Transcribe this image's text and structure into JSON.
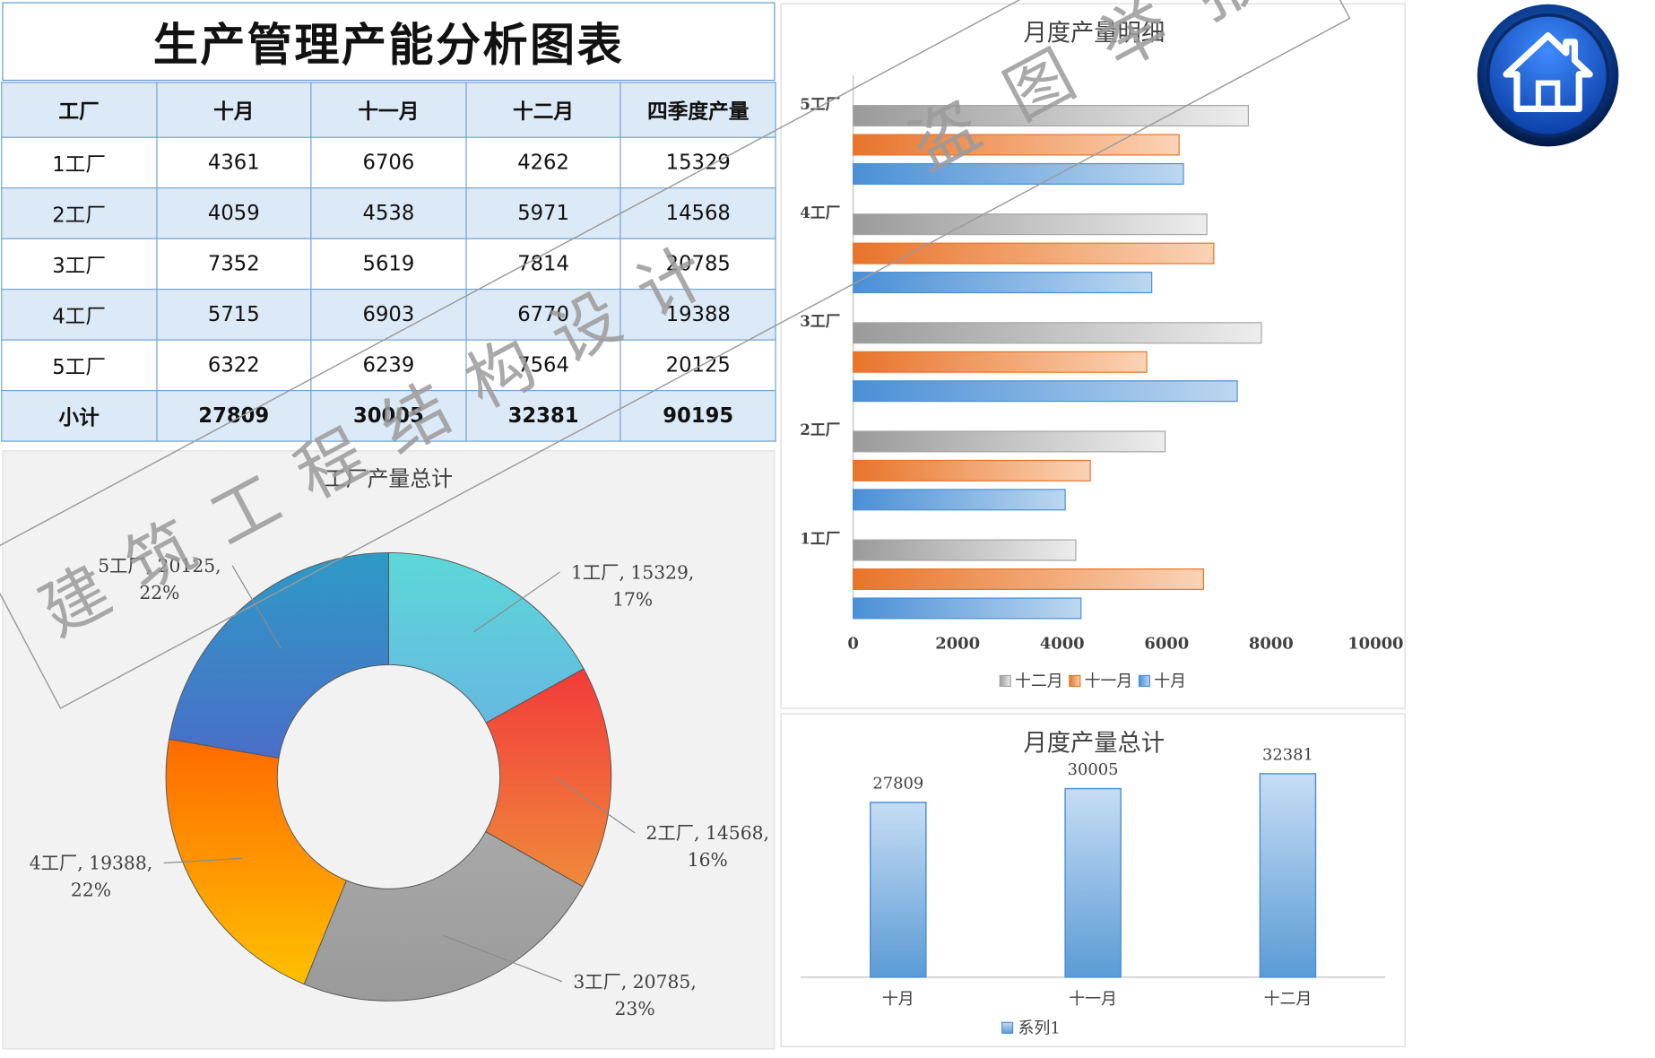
{
  "page": {
    "title": "生产管理产能分析图表",
    "watermark": {
      "line1": [
        "建",
        "筑",
        "工",
        "程",
        "结",
        "构",
        "设",
        "计"
      ],
      "line2": [
        "盗",
        "图",
        "举",
        "报"
      ]
    }
  },
  "table": {
    "headers": [
      "工厂",
      "十月",
      "十一月",
      "十二月",
      "四季度产量"
    ],
    "rows": [
      [
        "1工厂",
        "4361",
        "6706",
        "4262",
        "15329"
      ],
      [
        "2工厂",
        "4059",
        "4538",
        "5971",
        "14568"
      ],
      [
        "3工厂",
        "7352",
        "5619",
        "7814",
        "20785"
      ],
      [
        "4工厂",
        "5715",
        "6903",
        "6770",
        "19388"
      ],
      [
        "5工厂",
        "6322",
        "6239",
        "7564",
        "20125"
      ]
    ],
    "subtotal": [
      "小计",
      "27809",
      "30005",
      "32381",
      "90195"
    ]
  },
  "colors": {
    "header_bg": "#dce9f6",
    "border": "#6fa3d6",
    "blue": "#5b9bd5",
    "orange": "#ed7d31",
    "gray": "#a5a5a5"
  },
  "chart_data": [
    {
      "type": "pie",
      "donut": true,
      "title": "工厂产量总计",
      "categories": [
        "1工厂",
        "2工厂",
        "3工厂",
        "4工厂",
        "5工厂"
      ],
      "values": [
        15329,
        14568,
        20785,
        19388,
        20125
      ],
      "labels": [
        [
          "1工厂, 15329,",
          "17%"
        ],
        [
          "2工厂, 14568,",
          "16%"
        ],
        [
          "3工厂, 20785,",
          "23%"
        ],
        [
          "4工厂, 19388,",
          "22%"
        ],
        [
          "5工厂, 20125,",
          "22%"
        ]
      ],
      "colors": [
        [
          "#5cd8d8",
          "#66b8e0"
        ],
        [
          "#f23a3a",
          "#f08a3a"
        ],
        [
          "#a8a8a8",
          "#9a9a9a"
        ],
        [
          "#ff6a00",
          "#ffc000"
        ],
        [
          "#2e9ac6",
          "#4a6ec8"
        ]
      ]
    },
    {
      "type": "bar",
      "orientation": "horizontal",
      "title": "月度产量明细",
      "categories": [
        "1工厂",
        "2工厂",
        "3工厂",
        "4工厂",
        "5工厂"
      ],
      "series": [
        {
          "name": "十月",
          "values": [
            4361,
            4059,
            7352,
            5715,
            6322
          ],
          "color": "#5b9bd5"
        },
        {
          "name": "十一月",
          "values": [
            6706,
            4538,
            5619,
            6903,
            6239
          ],
          "color": "#ed7d31"
        },
        {
          "name": "十二月",
          "values": [
            4262,
            5971,
            7814,
            6770,
            7564
          ],
          "color": "#a5a5a5"
        }
      ],
      "xlim": [
        0,
        10000
      ],
      "x_ticks": [
        "0",
        "2000",
        "4000",
        "6000",
        "8000",
        "10000"
      ],
      "legend_order": [
        "十二月",
        "十一月",
        "十月"
      ],
      "legend_position": "bottom"
    },
    {
      "type": "bar",
      "title": "月度产量总计",
      "categories": [
        "十月",
        "十一月",
        "十二月"
      ],
      "series": [
        {
          "name": "系列1",
          "values": [
            27809,
            30005,
            32381
          ]
        }
      ],
      "data_labels": [
        "27809",
        "30005",
        "32381"
      ],
      "legend_position": "bottom"
    }
  ]
}
